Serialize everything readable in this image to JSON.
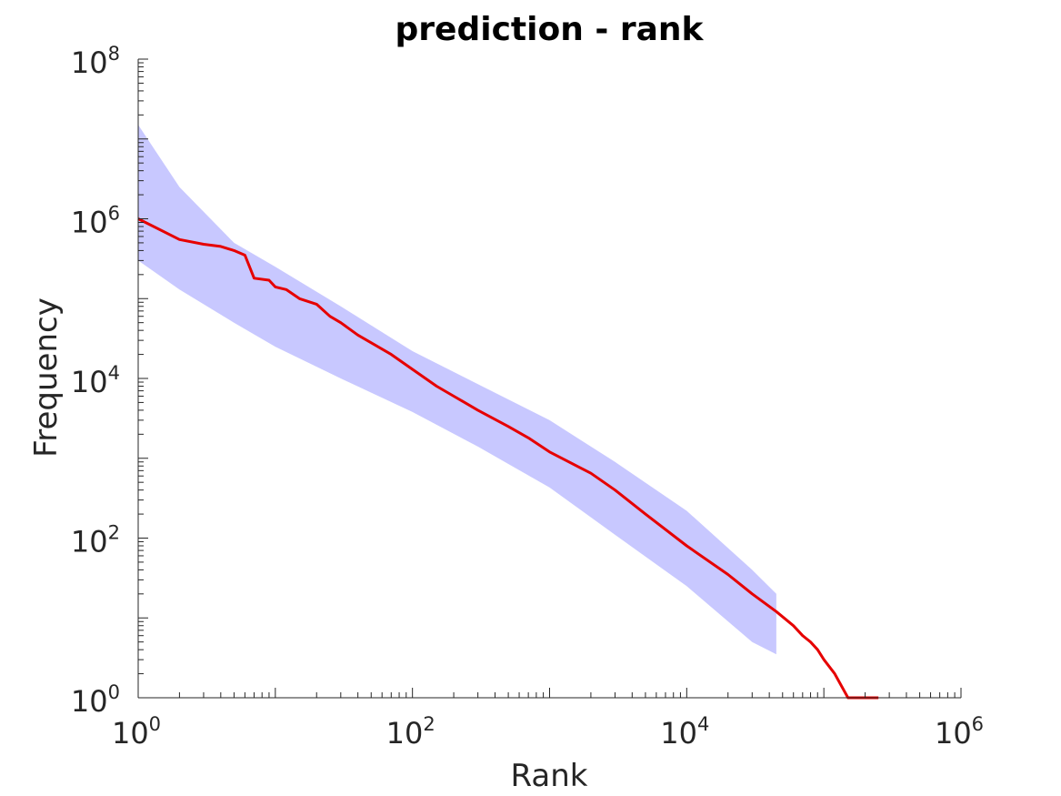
{
  "chart_data": {
    "type": "line",
    "title": "prediction - rank",
    "xlabel": "Rank",
    "ylabel": "Frequency",
    "xscale": "log",
    "yscale": "log",
    "xlim": [
      1,
      1000000
    ],
    "ylim": [
      1,
      100000000
    ],
    "grid": false,
    "x_ticks": [
      {
        "base": "10",
        "exp": "0"
      },
      {
        "base": "10",
        "exp": "2"
      },
      {
        "base": "10",
        "exp": "4"
      },
      {
        "base": "10",
        "exp": "6"
      }
    ],
    "y_ticks": [
      {
        "base": "10",
        "exp": "0"
      },
      {
        "base": "10",
        "exp": "2"
      },
      {
        "base": "10",
        "exp": "4"
      },
      {
        "base": "10",
        "exp": "6"
      },
      {
        "base": "10",
        "exp": "8"
      }
    ],
    "band": {
      "color": "#c8c8ff",
      "x": [
        1,
        2,
        5,
        10,
        30,
        100,
        300,
        1000,
        3000,
        10000,
        30000,
        45000
      ],
      "upper": [
        15000000,
        2500000,
        500000,
        250000,
        80000,
        22000,
        8500,
        3000,
        900,
        220,
        40,
        20
      ],
      "lower": [
        300000,
        130000,
        50000,
        25000,
        10000,
        3800,
        1400,
        430,
        110,
        25,
        5,
        3.5
      ]
    },
    "series": [
      {
        "color": "#e60000",
        "x": [
          1,
          2,
          3,
          4,
          5,
          6,
          7,
          9,
          10,
          12,
          15,
          20,
          25,
          30,
          40,
          50,
          70,
          100,
          150,
          200,
          300,
          500,
          700,
          1000,
          2000,
          3000,
          5000,
          10000,
          20000,
          30000,
          45000,
          60000,
          70000,
          80000,
          90000,
          100000,
          120000,
          150000,
          250000
        ],
        "y": [
          1000000,
          550000,
          480000,
          450000,
          400000,
          350000,
          180000,
          170000,
          140000,
          130000,
          100000,
          85000,
          60000,
          50000,
          35000,
          28000,
          20000,
          13000,
          8000,
          6000,
          4000,
          2500,
          1800,
          1200,
          650,
          400,
          200,
          80,
          35,
          20,
          12,
          8,
          6,
          5,
          4,
          3,
          2,
          1,
          1
        ]
      }
    ]
  }
}
